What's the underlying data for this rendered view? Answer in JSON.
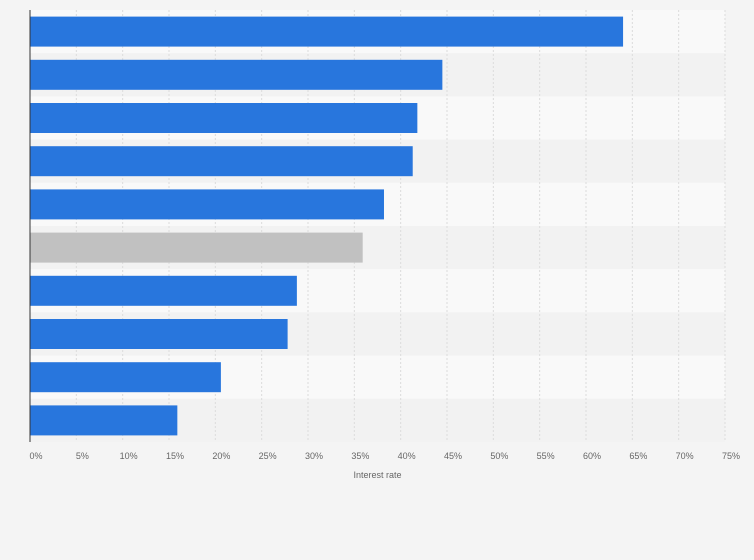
{
  "chart_data": {
    "type": "bar",
    "orientation": "horizontal",
    "title": "",
    "xlabel": "Interest rate",
    "ylabel": "",
    "xlim": [
      0,
      75
    ],
    "x_tick_values": [
      0,
      5,
      10,
      15,
      20,
      25,
      30,
      35,
      40,
      45,
      50,
      55,
      60,
      65,
      70,
      75
    ],
    "x_tick_labels": [
      "0%",
      "5%",
      "10%",
      "15%",
      "20%",
      "25%",
      "30%",
      "35%",
      "40%",
      "45%",
      "50%",
      "55%",
      "60%",
      "65%",
      "70%",
      "75%"
    ],
    "values": [
      64,
      44.5,
      41.8,
      41.3,
      38.2,
      35.9,
      28.8,
      27.8,
      20.6,
      15.9
    ],
    "highlight_index": 5,
    "grid": true,
    "legend": "none",
    "colors": {
      "bar": "#2876dd",
      "highlight_bar": "#c1c1c1",
      "band_light": "#f9f9f9",
      "band_dark": "#f2f2f2",
      "grid": "#dcdcdc",
      "axis": "#333333"
    }
  }
}
